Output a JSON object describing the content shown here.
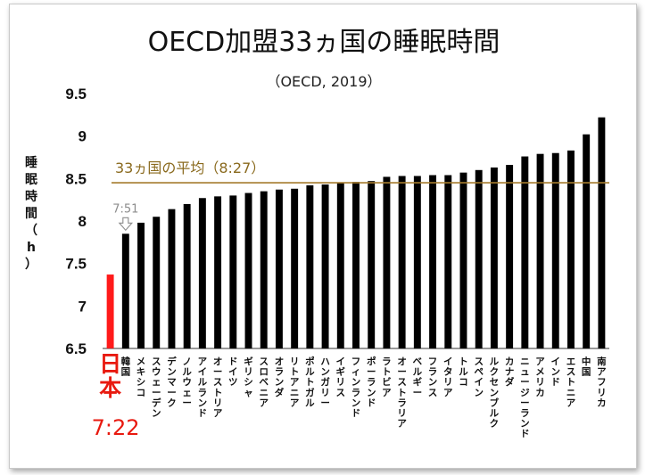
{
  "chart_data": {
    "type": "bar",
    "title": "OECD加盟33ヵ国の睡眠時間",
    "subtitle": "（OECD, 2019）",
    "ylabel": "睡眠時間（h）",
    "ylim": [
      6.5,
      9.5
    ],
    "yticks": [
      "6.5",
      "7",
      "7.5",
      "8",
      "8.5",
      "9",
      "9.5"
    ],
    "average": {
      "label": "33ヵ国の平均（8:27）",
      "value": 8.45,
      "color": "#a67c2e"
    },
    "highlight": {
      "name": "日本",
      "value_label": "7:22",
      "color": "#ff1a1a"
    },
    "callout": {
      "label": "7:51",
      "index": 1
    },
    "categories": [
      "日本",
      "韓国",
      "メキシコ",
      "スウェーデン",
      "デンマーク",
      "ノルウェー",
      "アイルランド",
      "オーストリア",
      "ドイツ",
      "ギリシャ",
      "スロベニア",
      "オランダ",
      "リトアニア",
      "ポルトガル",
      "ハンガリー",
      "イギリス",
      "フィンランド",
      "ポーランド",
      "ラトビア",
      "オーストラリア",
      "ベルギー",
      "フランス",
      "イタリア",
      "トルコ",
      "スペイン",
      "ルクセンブルク",
      "カナダ",
      "ニュージーランド",
      "アメリカ",
      "インド",
      "エストニア",
      "中国",
      "南アフリカ"
    ],
    "values": [
      7.37,
      7.85,
      7.98,
      8.05,
      8.14,
      8.2,
      8.27,
      8.29,
      8.3,
      8.33,
      8.35,
      8.37,
      8.38,
      8.42,
      8.43,
      8.45,
      8.46,
      8.47,
      8.52,
      8.53,
      8.53,
      8.54,
      8.54,
      8.57,
      8.6,
      8.63,
      8.66,
      8.76,
      8.79,
      8.8,
      8.83,
      9.02,
      9.22
    ],
    "bar_color": "#000000"
  }
}
